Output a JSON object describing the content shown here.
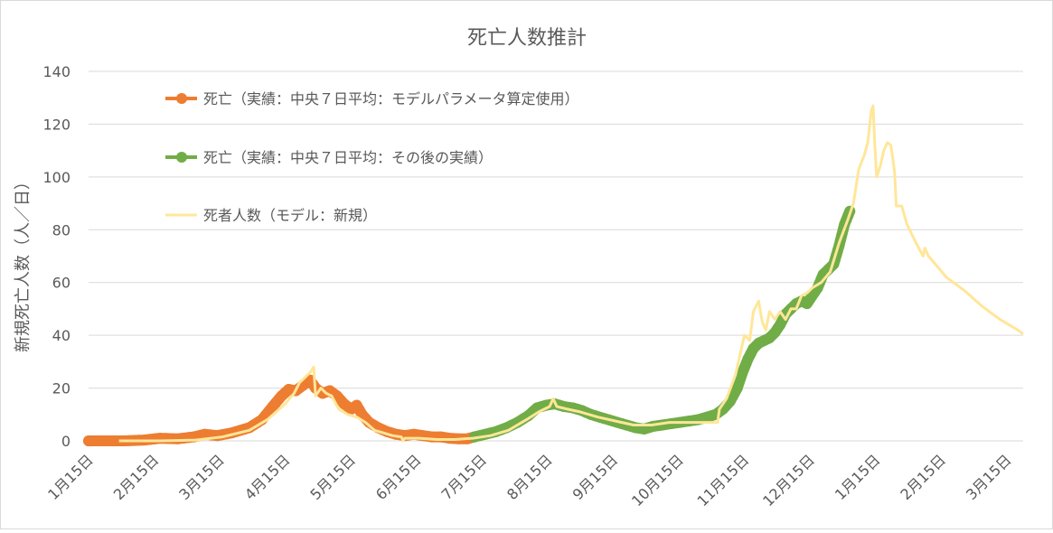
{
  "chart_data": {
    "type": "line",
    "title": "死亡人数推計",
    "ylabel": "新規死亡人数（人／日）",
    "xlabel": "",
    "ylim": [
      0,
      140
    ],
    "yticks": [
      0,
      20,
      40,
      60,
      80,
      100,
      120,
      140
    ],
    "xticks": [
      "1月15日",
      "2月15日",
      "3月15日",
      "4月15日",
      "5月15日",
      "6月15日",
      "7月15日",
      "8月15日",
      "9月15日",
      "10月15日",
      "11月15日",
      "12月15日",
      "1月15日",
      "2月15日",
      "3月15日"
    ],
    "grid": "horizontal",
    "legend_position": "top-left",
    "series": [
      {
        "name": "死亡（実績：中央７日平均：モデルパラメータ算定使用）",
        "color": "#ED7D31",
        "style": "marker-line",
        "points": [
          [
            0,
            0
          ],
          [
            10,
            0
          ],
          [
            20,
            0
          ],
          [
            31,
            0.3
          ],
          [
            40,
            1
          ],
          [
            50,
            0.8
          ],
          [
            59,
            1.5
          ],
          [
            65,
            2.5
          ],
          [
            72,
            2
          ],
          [
            80,
            3
          ],
          [
            90,
            5
          ],
          [
            97,
            8
          ],
          [
            103,
            13
          ],
          [
            108,
            17
          ],
          [
            112,
            19.5
          ],
          [
            116,
            19
          ],
          [
            120,
            21
          ],
          [
            124,
            23
          ],
          [
            127,
            20
          ],
          [
            131,
            18
          ],
          [
            135,
            19
          ],
          [
            139,
            17
          ],
          [
            143,
            14
          ],
          [
            147,
            12
          ],
          [
            150,
            13.5
          ],
          [
            153,
            10
          ],
          [
            157,
            7
          ],
          [
            162,
            5
          ],
          [
            167,
            3.5
          ],
          [
            172,
            2.5
          ],
          [
            177,
            2
          ],
          [
            182,
            2.5
          ],
          [
            187,
            2
          ],
          [
            192,
            1.5
          ],
          [
            197,
            1.5
          ],
          [
            202,
            1
          ],
          [
            207,
            0.8
          ],
          [
            212,
            0.8
          ],
          [
            216,
            1.5
          ]
        ]
      },
      {
        "name": "死亡（実績：中央７日平均：その後の実績）",
        "color": "#70AD47",
        "style": "marker-line",
        "points": [
          [
            216,
            1.5
          ],
          [
            222,
            2.5
          ],
          [
            228,
            3.5
          ],
          [
            234,
            5
          ],
          [
            240,
            7
          ],
          [
            246,
            9.5
          ],
          [
            251,
            12.5
          ],
          [
            256,
            13.5
          ],
          [
            261,
            14
          ],
          [
            266,
            13
          ],
          [
            271,
            12.5
          ],
          [
            276,
            11.5
          ],
          [
            281,
            10
          ],
          [
            286,
            9
          ],
          [
            291,
            8
          ],
          [
            296,
            7
          ],
          [
            301,
            6
          ],
          [
            306,
            5
          ],
          [
            311,
            4.5
          ],
          [
            316,
            5.5
          ],
          [
            321,
            6
          ],
          [
            326,
            6.5
          ],
          [
            331,
            7
          ],
          [
            336,
            7.5
          ],
          [
            341,
            8
          ],
          [
            346,
            9
          ],
          [
            351,
            10
          ],
          [
            355,
            12
          ],
          [
            359,
            15
          ],
          [
            363,
            20
          ],
          [
            366,
            26
          ],
          [
            369,
            31
          ],
          [
            372,
            35
          ],
          [
            375,
            37
          ],
          [
            378,
            38
          ],
          [
            381,
            39
          ],
          [
            384,
            41
          ],
          [
            387,
            44
          ],
          [
            390,
            48
          ],
          [
            393,
            50
          ],
          [
            396,
            52
          ],
          [
            399,
            53
          ],
          [
            402,
            52
          ],
          [
            405,
            55
          ],
          [
            408,
            58
          ],
          [
            411,
            63
          ],
          [
            414,
            65
          ],
          [
            417,
            67
          ],
          [
            420,
            74
          ],
          [
            423,
            82
          ],
          [
            426,
            87
          ]
        ]
      },
      {
        "name": "死者人数（モデル：新規）",
        "color": "#FFE699",
        "style": "line",
        "points": [
          [
            17,
            0
          ],
          [
            40,
            0
          ],
          [
            60,
            0.3
          ],
          [
            75,
            1.5
          ],
          [
            90,
            4
          ],
          [
            100,
            8
          ],
          [
            110,
            14
          ],
          [
            115,
            18
          ],
          [
            118,
            22
          ],
          [
            121,
            24
          ],
          [
            124,
            26
          ],
          [
            126,
            28
          ],
          [
            127,
            17
          ],
          [
            130,
            20
          ],
          [
            133,
            18
          ],
          [
            136,
            17
          ],
          [
            140,
            12
          ],
          [
            145,
            10
          ],
          [
            150,
            9
          ],
          [
            155,
            7
          ],
          [
            160,
            4
          ],
          [
            165,
            3
          ],
          [
            170,
            2
          ],
          [
            175,
            1.5
          ],
          [
            176,
            0
          ],
          [
            177,
            1
          ],
          [
            185,
            1
          ],
          [
            195,
            0.5
          ],
          [
            205,
            0.5
          ],
          [
            215,
            1
          ],
          [
            225,
            2
          ],
          [
            235,
            4
          ],
          [
            245,
            8
          ],
          [
            252,
            11
          ],
          [
            258,
            13
          ],
          [
            260,
            16
          ],
          [
            262,
            13
          ],
          [
            268,
            12
          ],
          [
            275,
            11
          ],
          [
            285,
            9
          ],
          [
            295,
            7.5
          ],
          [
            305,
            6
          ],
          [
            315,
            6
          ],
          [
            325,
            7
          ],
          [
            335,
            7
          ],
          [
            345,
            7
          ],
          [
            352,
            7
          ],
          [
            353,
            12
          ],
          [
            357,
            16
          ],
          [
            362,
            25
          ],
          [
            367,
            40
          ],
          [
            370,
            38
          ],
          [
            372,
            49
          ],
          [
            375,
            53
          ],
          [
            377,
            45
          ],
          [
            379,
            42
          ],
          [
            381,
            49
          ],
          [
            384,
            46
          ],
          [
            387,
            49
          ],
          [
            390,
            46
          ],
          [
            393,
            50
          ],
          [
            396,
            50
          ],
          [
            399,
            55
          ],
          [
            402,
            56
          ],
          [
            405,
            58
          ],
          [
            410,
            60
          ],
          [
            415,
            64
          ],
          [
            420,
            75
          ],
          [
            425,
            84
          ],
          [
            428,
            90
          ],
          [
            431,
            103
          ],
          [
            434,
            108
          ],
          [
            436,
            113
          ],
          [
            438,
            125
          ],
          [
            439,
            127
          ],
          [
            440,
            112
          ],
          [
            441,
            100
          ],
          [
            443,
            104
          ],
          [
            445,
            110
          ],
          [
            447,
            113
          ],
          [
            449,
            112
          ],
          [
            451,
            102
          ],
          [
            452,
            89
          ],
          [
            455,
            89
          ],
          [
            458,
            82
          ],
          [
            463,
            75
          ],
          [
            467,
            70
          ],
          [
            468,
            73
          ],
          [
            470,
            70
          ],
          [
            475,
            66
          ],
          [
            480,
            62
          ],
          [
            490,
            57
          ],
          [
            500,
            51
          ],
          [
            510,
            46
          ],
          [
            520,
            42
          ],
          [
            523,
            40.5
          ]
        ]
      }
    ]
  }
}
